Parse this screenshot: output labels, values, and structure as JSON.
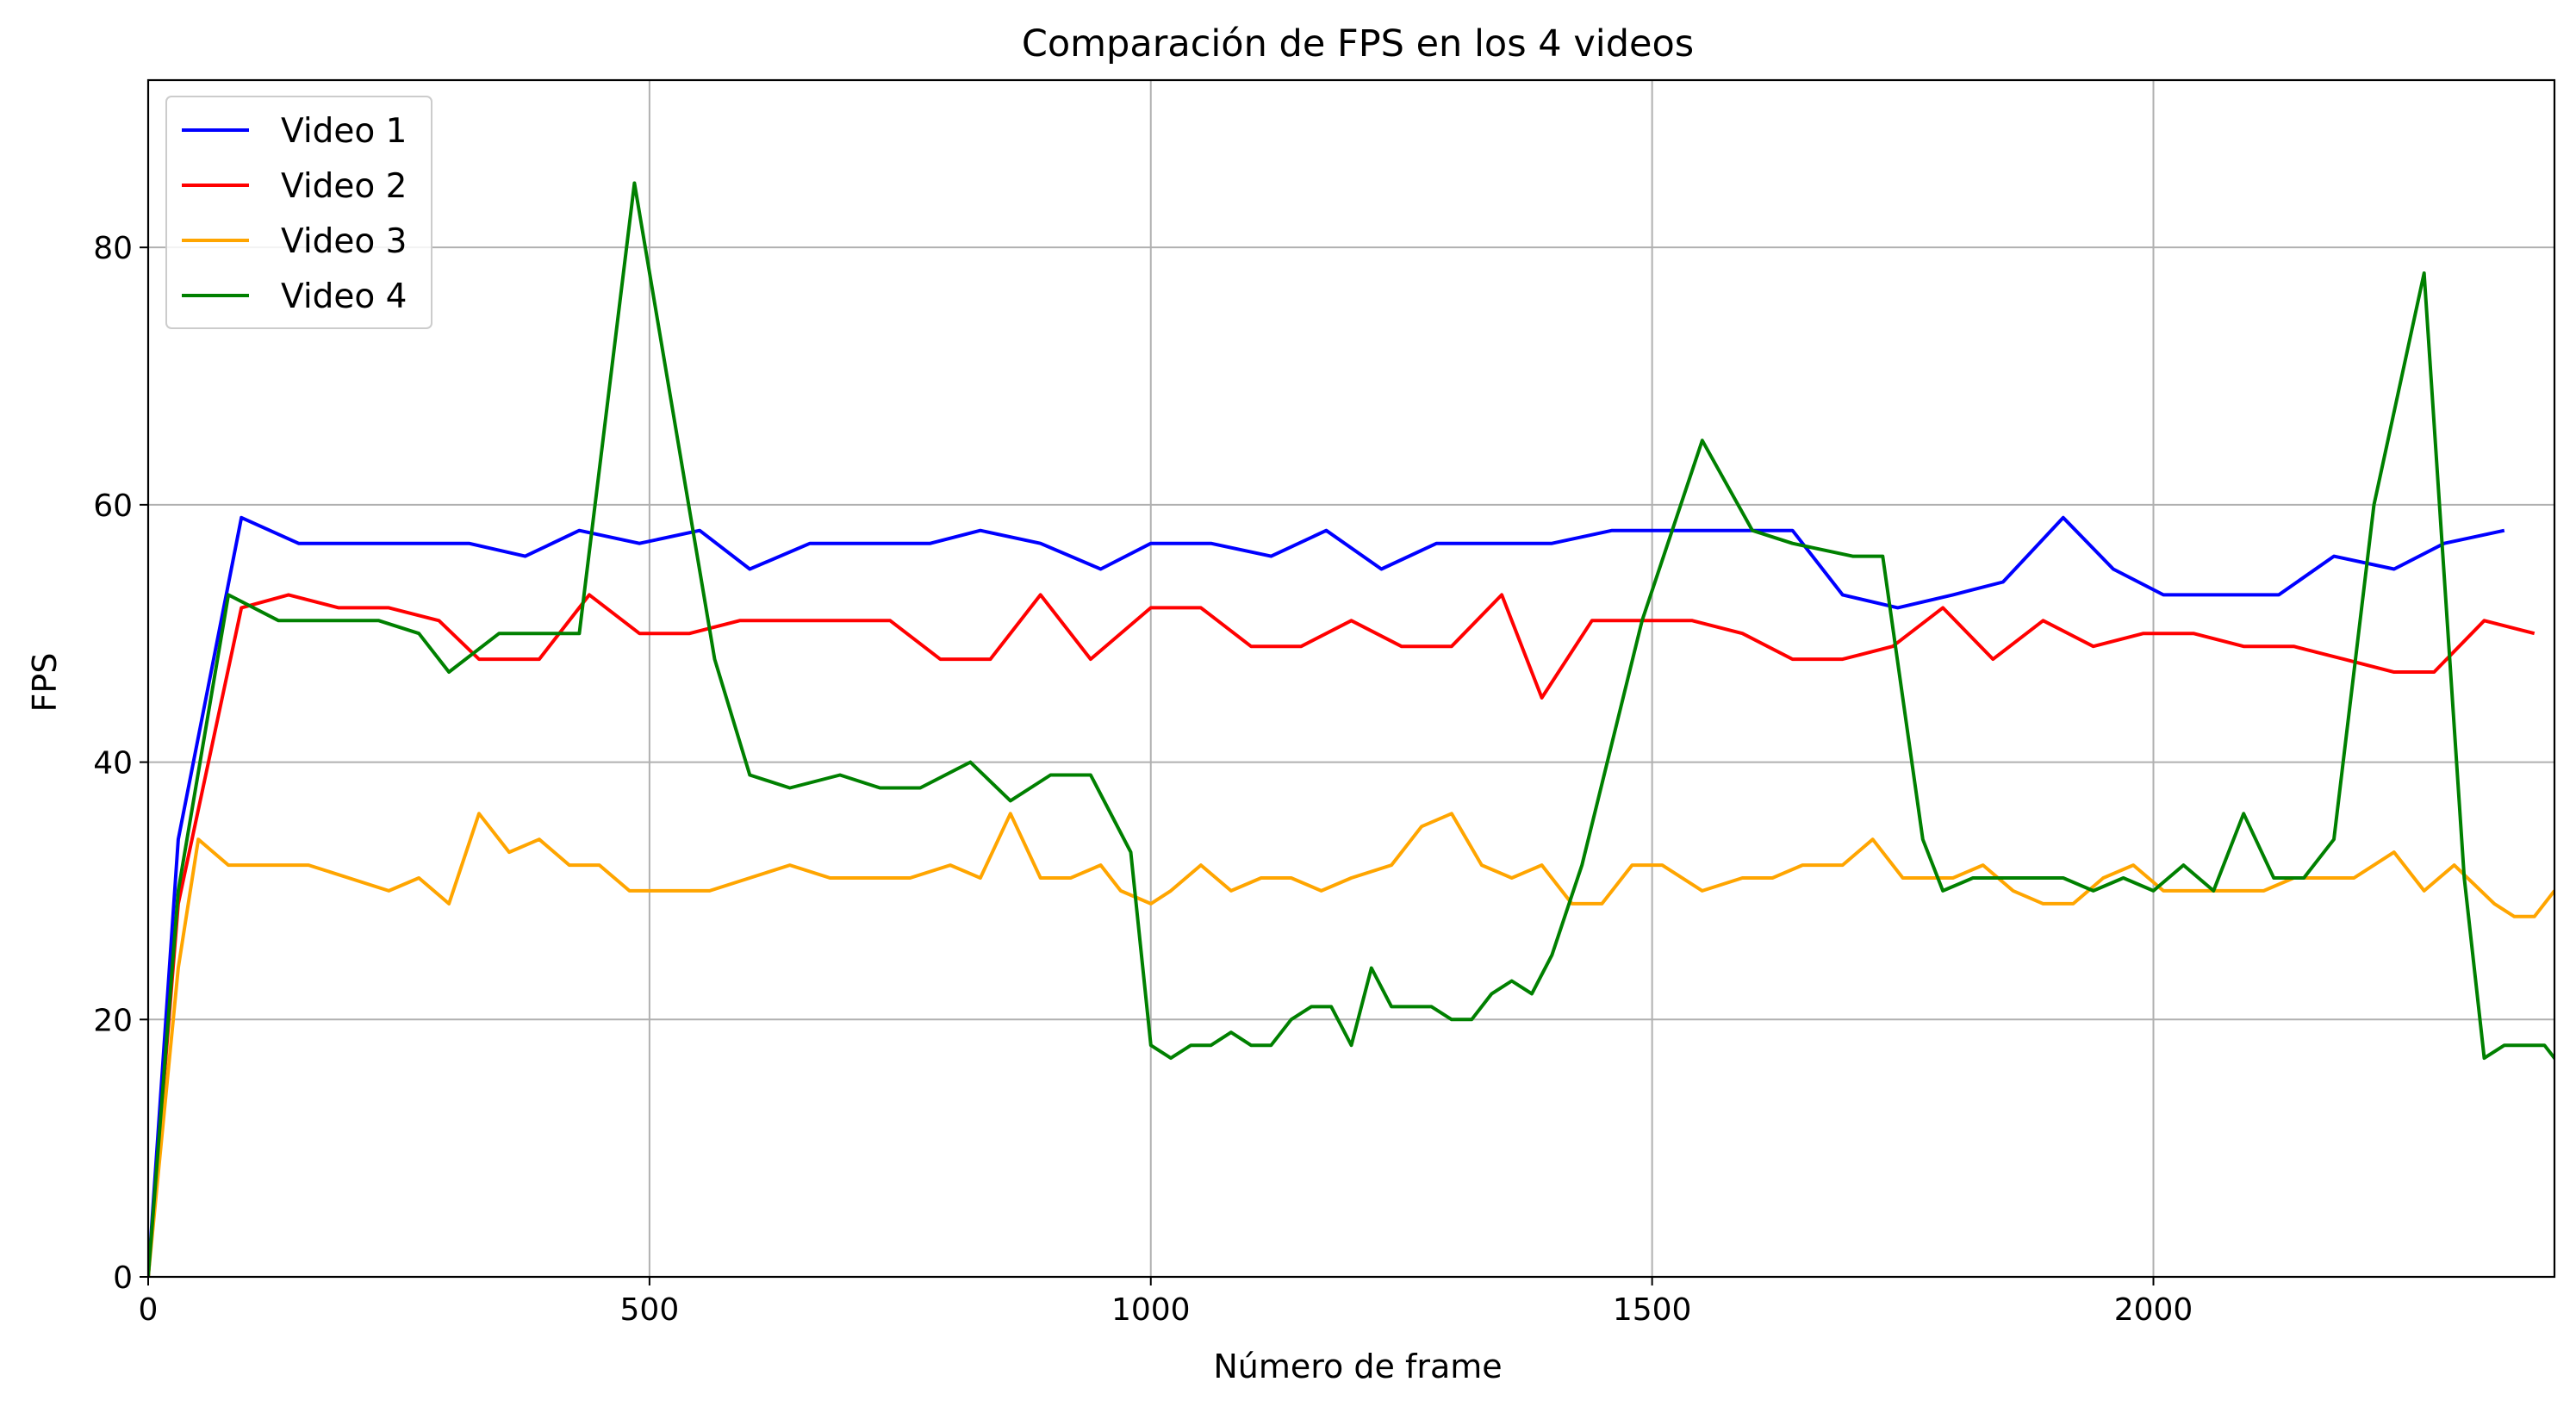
{
  "chart_data": {
    "type": "line",
    "title": "Comparación de FPS en los 4 videos",
    "xlabel": "Número de frame",
    "ylabel": "FPS",
    "xlim": [
      0,
      2400
    ],
    "ylim": [
      0,
      93
    ],
    "grid": true,
    "legend_position": "top-left",
    "x_ticks": [
      0,
      500,
      1000,
      1500,
      2000
    ],
    "y_ticks": [
      0,
      20,
      40,
      60,
      80
    ],
    "series": [
      {
        "name": "Video 1",
        "color": "#0000ff",
        "points": [
          [
            0,
            0
          ],
          [
            30,
            34
          ],
          [
            93,
            59
          ],
          [
            150,
            57
          ],
          [
            210,
            57
          ],
          [
            270,
            57
          ],
          [
            320,
            57
          ],
          [
            376,
            56
          ],
          [
            430,
            58
          ],
          [
            490,
            57
          ],
          [
            550,
            58
          ],
          [
            600,
            55
          ],
          [
            660,
            57
          ],
          [
            720,
            57
          ],
          [
            780,
            57
          ],
          [
            830,
            58
          ],
          [
            890,
            57
          ],
          [
            950,
            55
          ],
          [
            1000,
            57
          ],
          [
            1060,
            57
          ],
          [
            1120,
            56
          ],
          [
            1175,
            58
          ],
          [
            1230,
            55
          ],
          [
            1285,
            57
          ],
          [
            1340,
            57
          ],
          [
            1400,
            57
          ],
          [
            1460,
            58
          ],
          [
            1520,
            58
          ],
          [
            1580,
            58
          ],
          [
            1640,
            58
          ],
          [
            1690,
            53
          ],
          [
            1745,
            52
          ],
          [
            1800,
            53
          ],
          [
            1850,
            54
          ],
          [
            1910,
            59
          ],
          [
            1960,
            55
          ],
          [
            2010,
            53
          ],
          [
            2070,
            53
          ],
          [
            2125,
            53
          ],
          [
            2180,
            56
          ],
          [
            2240,
            55
          ],
          [
            2290,
            57
          ],
          [
            2350,
            58
          ]
        ]
      },
      {
        "name": "Video 2",
        "color": "#ff0000",
        "points": [
          [
            0,
            0
          ],
          [
            30,
            29
          ],
          [
            93,
            52
          ],
          [
            140,
            53
          ],
          [
            190,
            52
          ],
          [
            240,
            52
          ],
          [
            290,
            51
          ],
          [
            330,
            48
          ],
          [
            390,
            48
          ],
          [
            440,
            53
          ],
          [
            490,
            50
          ],
          [
            540,
            50
          ],
          [
            590,
            51
          ],
          [
            640,
            51
          ],
          [
            690,
            51
          ],
          [
            740,
            51
          ],
          [
            790,
            48
          ],
          [
            840,
            48
          ],
          [
            890,
            53
          ],
          [
            940,
            48
          ],
          [
            1000,
            52
          ],
          [
            1050,
            52
          ],
          [
            1100,
            49
          ],
          [
            1150,
            49
          ],
          [
            1200,
            51
          ],
          [
            1250,
            49
          ],
          [
            1300,
            49
          ],
          [
            1350,
            53
          ],
          [
            1390,
            45
          ],
          [
            1440,
            51
          ],
          [
            1490,
            51
          ],
          [
            1540,
            51
          ],
          [
            1590,
            50
          ],
          [
            1640,
            48
          ],
          [
            1690,
            48
          ],
          [
            1740,
            49
          ],
          [
            1790,
            52
          ],
          [
            1840,
            48
          ],
          [
            1890,
            51
          ],
          [
            1940,
            49
          ],
          [
            1990,
            50
          ],
          [
            2040,
            50
          ],
          [
            2090,
            49
          ],
          [
            2140,
            49
          ],
          [
            2190,
            48
          ],
          [
            2240,
            47
          ],
          [
            2280,
            47
          ],
          [
            2330,
            51
          ],
          [
            2380,
            50
          ]
        ]
      },
      {
        "name": "Video 3",
        "color": "#ffa500",
        "points": [
          [
            0,
            0
          ],
          [
            30,
            24
          ],
          [
            50,
            34
          ],
          [
            80,
            32
          ],
          [
            120,
            32
          ],
          [
            160,
            32
          ],
          [
            200,
            31
          ],
          [
            240,
            30
          ],
          [
            270,
            31
          ],
          [
            300,
            29
          ],
          [
            330,
            36
          ],
          [
            360,
            33
          ],
          [
            390,
            34
          ],
          [
            420,
            32
          ],
          [
            450,
            32
          ],
          [
            480,
            30
          ],
          [
            520,
            30
          ],
          [
            560,
            30
          ],
          [
            600,
            31
          ],
          [
            640,
            32
          ],
          [
            680,
            31
          ],
          [
            720,
            31
          ],
          [
            760,
            31
          ],
          [
            800,
            32
          ],
          [
            830,
            31
          ],
          [
            860,
            36
          ],
          [
            890,
            31
          ],
          [
            920,
            31
          ],
          [
            950,
            32
          ],
          [
            970,
            30
          ],
          [
            1000,
            29
          ],
          [
            1020,
            30
          ],
          [
            1050,
            32
          ],
          [
            1080,
            30
          ],
          [
            1110,
            31
          ],
          [
            1140,
            31
          ],
          [
            1170,
            30
          ],
          [
            1200,
            31
          ],
          [
            1240,
            32
          ],
          [
            1270,
            35
          ],
          [
            1300,
            36
          ],
          [
            1330,
            32
          ],
          [
            1360,
            31
          ],
          [
            1390,
            32
          ],
          [
            1420,
            29
          ],
          [
            1450,
            29
          ],
          [
            1480,
            32
          ],
          [
            1510,
            32
          ],
          [
            1550,
            30
          ],
          [
            1590,
            31
          ],
          [
            1620,
            31
          ],
          [
            1650,
            32
          ],
          [
            1690,
            32
          ],
          [
            1720,
            34
          ],
          [
            1750,
            31
          ],
          [
            1780,
            31
          ],
          [
            1800,
            31
          ],
          [
            1830,
            32
          ],
          [
            1860,
            30
          ],
          [
            1890,
            29
          ],
          [
            1920,
            29
          ],
          [
            1950,
            31
          ],
          [
            1980,
            32
          ],
          [
            2010,
            30
          ],
          [
            2050,
            30
          ],
          [
            2080,
            30
          ],
          [
            2110,
            30
          ],
          [
            2140,
            31
          ],
          [
            2170,
            31
          ],
          [
            2200,
            31
          ],
          [
            2240,
            33
          ],
          [
            2270,
            30
          ],
          [
            2300,
            32
          ],
          [
            2340,
            29
          ],
          [
            2360,
            28
          ],
          [
            2380,
            28
          ],
          [
            2400,
            30
          ]
        ]
      },
      {
        "name": "Video 4",
        "color": "#008000",
        "points": [
          [
            0,
            0
          ],
          [
            30,
            30
          ],
          [
            80,
            53
          ],
          [
            130,
            51
          ],
          [
            180,
            51
          ],
          [
            230,
            51
          ],
          [
            270,
            50
          ],
          [
            300,
            47
          ],
          [
            350,
            50
          ],
          [
            390,
            50
          ],
          [
            430,
            50
          ],
          [
            485,
            85
          ],
          [
            565,
            48
          ],
          [
            600,
            39
          ],
          [
            640,
            38
          ],
          [
            690,
            39
          ],
          [
            730,
            38
          ],
          [
            770,
            38
          ],
          [
            820,
            40
          ],
          [
            860,
            37
          ],
          [
            900,
            39
          ],
          [
            940,
            39
          ],
          [
            980,
            33
          ],
          [
            1000,
            18
          ],
          [
            1020,
            17
          ],
          [
            1040,
            18
          ],
          [
            1060,
            18
          ],
          [
            1080,
            19
          ],
          [
            1100,
            18
          ],
          [
            1120,
            18
          ],
          [
            1140,
            20
          ],
          [
            1160,
            21
          ],
          [
            1180,
            21
          ],
          [
            1200,
            18
          ],
          [
            1220,
            24
          ],
          [
            1240,
            21
          ],
          [
            1260,
            21
          ],
          [
            1280,
            21
          ],
          [
            1300,
            20
          ],
          [
            1320,
            20
          ],
          [
            1340,
            22
          ],
          [
            1360,
            23
          ],
          [
            1380,
            22
          ],
          [
            1400,
            25
          ],
          [
            1430,
            32
          ],
          [
            1490,
            51
          ],
          [
            1550,
            65
          ],
          [
            1600,
            58
          ],
          [
            1640,
            57
          ],
          [
            1700,
            56
          ],
          [
            1730,
            56
          ],
          [
            1770,
            34
          ],
          [
            1790,
            30
          ],
          [
            1820,
            31
          ],
          [
            1850,
            31
          ],
          [
            1880,
            31
          ],
          [
            1910,
            31
          ],
          [
            1940,
            30
          ],
          [
            1970,
            31
          ],
          [
            2000,
            30
          ],
          [
            2030,
            32
          ],
          [
            2060,
            30
          ],
          [
            2090,
            36
          ],
          [
            2120,
            31
          ],
          [
            2150,
            31
          ],
          [
            2180,
            34
          ],
          [
            2220,
            60
          ],
          [
            2270,
            78
          ],
          [
            2310,
            31
          ],
          [
            2330,
            17
          ],
          [
            2350,
            18
          ],
          [
            2370,
            18
          ],
          [
            2390,
            18
          ],
          [
            2410,
            16
          ]
        ]
      }
    ]
  }
}
